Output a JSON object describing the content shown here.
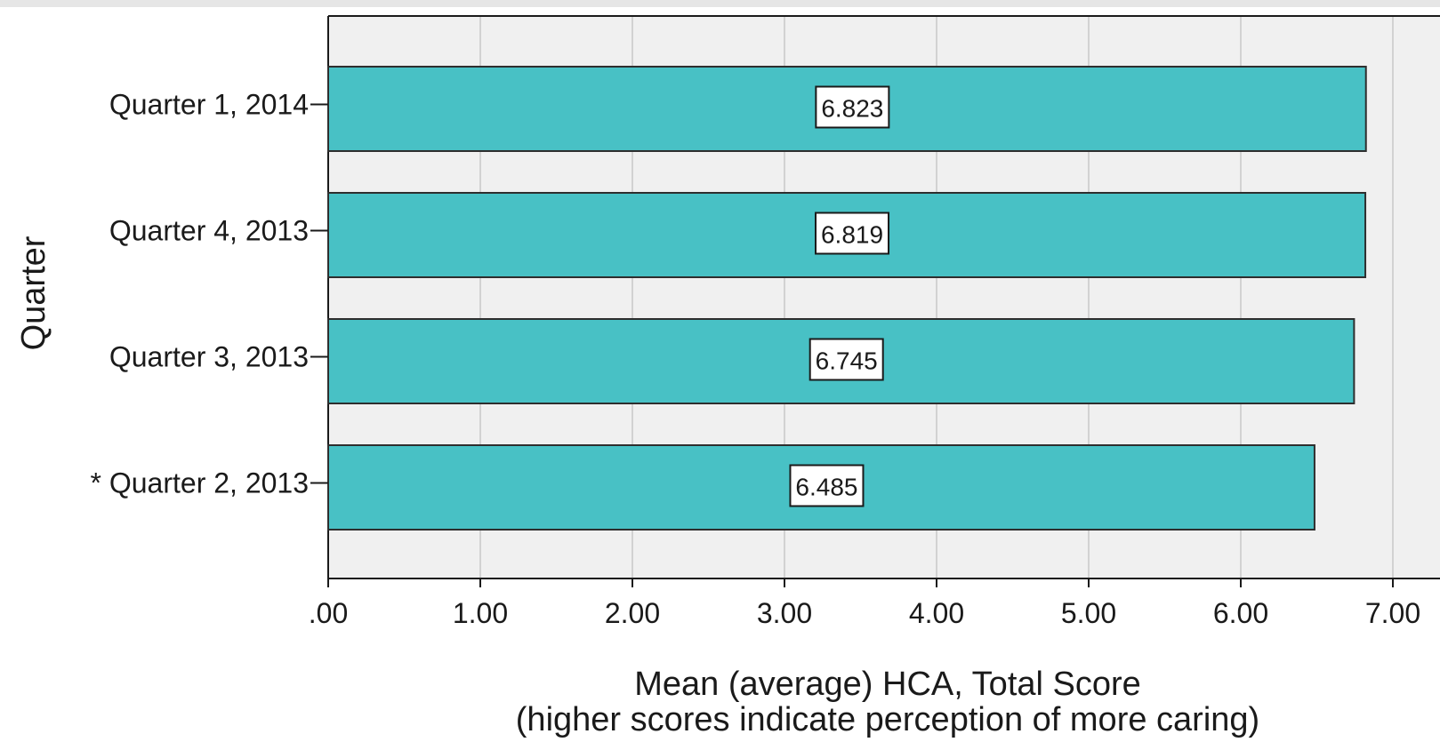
{
  "chart_data": {
    "type": "bar",
    "orientation": "horizontal",
    "categories": [
      "Quarter 1, 2014",
      "Quarter 4, 2013",
      "Quarter 3, 2013",
      "* Quarter 2, 2013"
    ],
    "values": [
      6.823,
      6.819,
      6.745,
      6.485
    ],
    "data_labels": [
      "6.823",
      "6.819",
      "6.745",
      "6.485"
    ],
    "ylabel": "Quarter",
    "xlabel_line1": "Mean (average) HCA, Total Score",
    "xlabel_line2": "(higher scores indicate perception of more caring)",
    "xticks": [
      0,
      1,
      2,
      3,
      4,
      5,
      6,
      7
    ],
    "xtick_labels": [
      ".00",
      "1.00",
      "2.00",
      "3.00",
      "4.00",
      "5.00",
      "6.00",
      "7.00"
    ],
    "xlim": [
      0,
      7
    ],
    "grid": true,
    "legend": "none",
    "colors": {
      "bar": "#48c1c5",
      "plot_bg": "#f0f0f0",
      "grid": "#c8c8c8",
      "axis": "#1a1a1a"
    }
  }
}
